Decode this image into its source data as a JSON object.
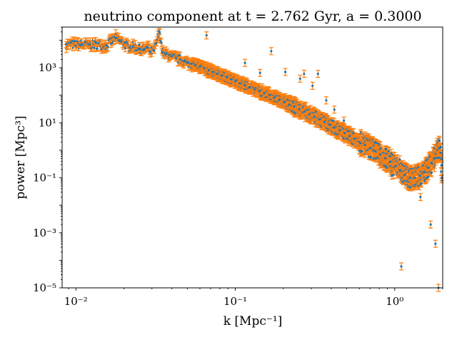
{
  "chart_data": {
    "type": "scatter",
    "title": "neutrino component at t = 2.762 Gyr, a = 0.3000",
    "xlabel": "k [Mpc⁻¹]",
    "ylabel": "power [Mpc³]",
    "xscale": "log",
    "yscale": "log",
    "xlim": [
      0.0082,
      2.0
    ],
    "ylim": [
      1e-05,
      30000
    ],
    "grid": false,
    "x_tick_labels": [
      "10⁻²",
      "10⁻¹",
      "10⁰"
    ],
    "y_tick_labels": [
      "10⁻⁵",
      "10⁻³",
      "10⁻¹",
      "10¹",
      "10³"
    ],
    "colors": {
      "points": "#1f77b4",
      "errorbars": "#ff7f0e"
    },
    "series": [
      {
        "marker": "point",
        "errorbars": true,
        "x": [
          0.0087,
          0.0122,
          0.0155,
          0.0178,
          0.0192,
          0.0217,
          0.0228,
          0.0252,
          0.0265,
          0.0285,
          0.0292,
          0.031,
          0.0335,
          0.035,
          0.0365,
          0.0385,
          0.04,
          0.0425,
          0.045,
          0.0475,
          0.05,
          0.053,
          0.056,
          0.06,
          0.064,
          0.068,
          0.072,
          0.077,
          0.082,
          0.088,
          0.094,
          0.1,
          0.107,
          0.115,
          0.123,
          0.132,
          0.142,
          0.152,
          0.164,
          0.176,
          0.189,
          0.203,
          0.218,
          0.234,
          0.252,
          0.271,
          0.291,
          0.313,
          0.337,
          0.362,
          0.39,
          0.419,
          0.451,
          0.485,
          0.522,
          0.562,
          0.605,
          0.651,
          0.7,
          0.753,
          0.81,
          0.872,
          0.938,
          1.01,
          1.08,
          1.16,
          1.25,
          1.34,
          1.44,
          1.53,
          1.62,
          1.7,
          1.76,
          1.81,
          1.86,
          1.9,
          1.94,
          1.97
        ],
        "y": [
          7000,
          7000,
          6500,
          12000,
          9000,
          5500,
          6000,
          4800,
          4500,
          5200,
          3800,
          4200,
          20000,
          3500,
          3200,
          2900,
          2600,
          2200,
          2000,
          1700,
          1500,
          1400,
          1250,
          1100,
          950,
          800,
          700,
          600,
          520,
          450,
          380,
          320,
          270,
          230,
          195,
          165,
          140,
          118,
          100,
          82,
          68,
          56,
          46,
          38,
          31,
          25,
          20,
          16.5,
          13.2,
          10.6,
          8.4,
          6.7,
          5.3,
          4.2,
          3.3,
          2.6,
          2.0,
          1.55,
          1.2,
          0.92,
          0.7,
          0.52,
          0.38,
          0.27,
          0.19,
          0.13,
          0.1,
          0.1,
          0.12,
          0.16,
          0.23,
          0.35,
          0.5,
          0.75,
          1.0,
          1.2,
          0.8,
          0.1
        ],
        "outliers": {
          "x": [
            0.066,
            0.115,
            0.143,
            0.168,
            0.206,
            0.255,
            0.27,
            0.305,
            0.33,
            0.372,
            0.418,
            0.48,
            0.55,
            0.61,
            0.7,
            0.76,
            0.88,
            0.96,
            1.1,
            1.25,
            1.45,
            1.68,
            1.8,
            1.88
          ],
          "y": [
            15000,
            1500,
            650,
            4000,
            700,
            400,
            600,
            220,
            600,
            65,
            30,
            12,
            4.2,
            1.8,
            1.2,
            0.5,
            0.25,
            0.12,
            6e-05,
            0.045,
            0.02,
            0.002,
            0.0004,
            1e-05
          ]
        }
      }
    ]
  }
}
